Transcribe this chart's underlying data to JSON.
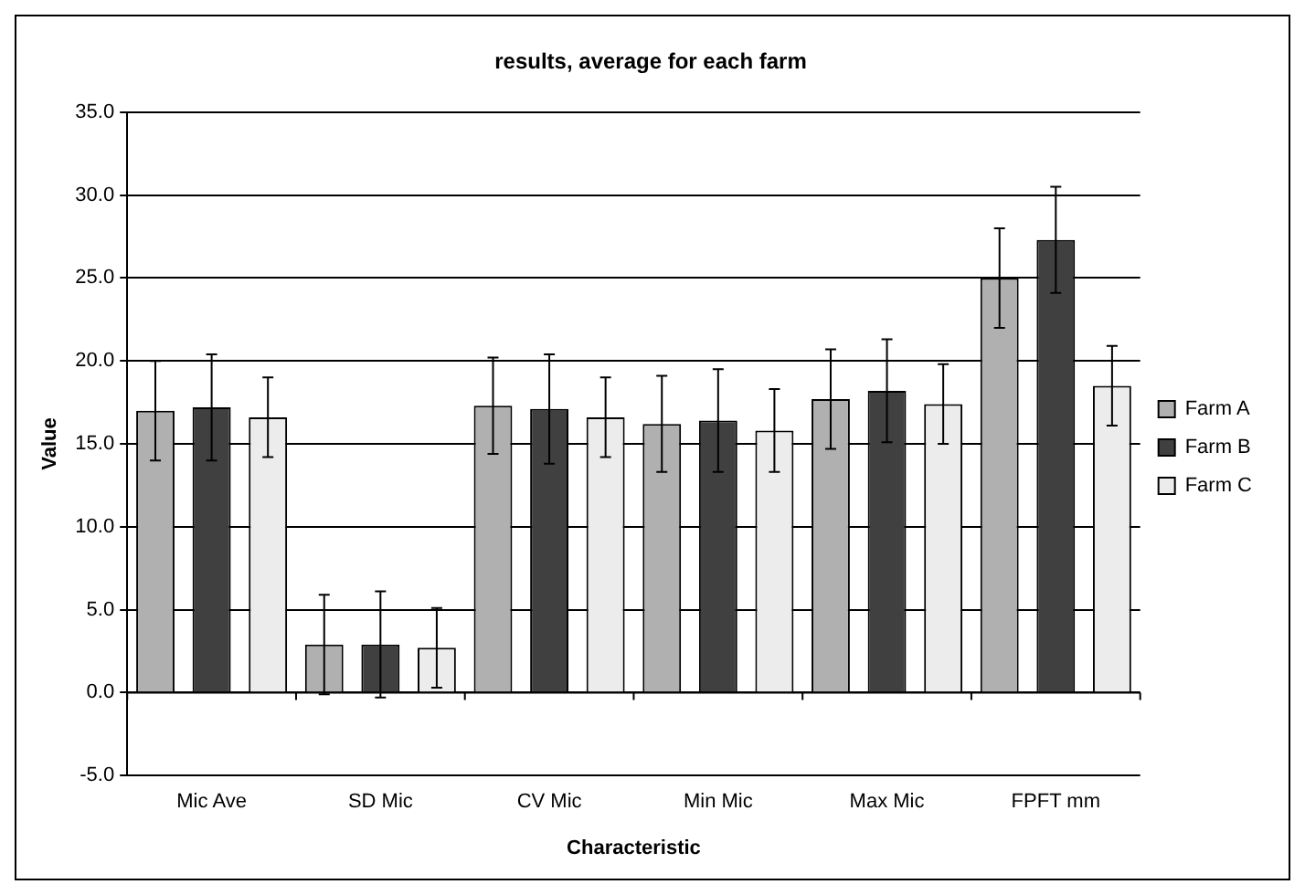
{
  "chart_data": {
    "type": "bar",
    "title": "results, average for each farm",
    "xlabel": "Characteristic",
    "ylabel": "Value",
    "categories": [
      "Mic Ave",
      "SD Mic",
      "CV Mic",
      "Min Mic",
      "Max Mic",
      "FPFT mm"
    ],
    "series": [
      {
        "name": "Farm A",
        "color": "#b0b0b0",
        "values": [
          17.0,
          2.9,
          17.3,
          16.2,
          17.7,
          25.0
        ],
        "errors": [
          3.0,
          3.0,
          2.9,
          2.9,
          3.0,
          3.0
        ]
      },
      {
        "name": "Farm B",
        "color": "#404040",
        "values": [
          17.2,
          2.9,
          17.1,
          16.4,
          18.2,
          27.3
        ],
        "errors": [
          3.2,
          3.2,
          3.3,
          3.1,
          3.1,
          3.2
        ]
      },
      {
        "name": "Farm C",
        "color": "#ececec",
        "values": [
          16.6,
          2.7,
          16.6,
          15.8,
          17.4,
          18.5
        ],
        "errors": [
          2.4,
          2.4,
          2.4,
          2.5,
          2.4,
          2.4
        ]
      }
    ],
    "ylim": [
      -5,
      35
    ],
    "yticks": [
      {
        "value": -5,
        "label": "-5.0"
      },
      {
        "value": 0,
        "label": "0.0"
      },
      {
        "value": 5,
        "label": "5.0"
      },
      {
        "value": 10,
        "label": "10.0"
      },
      {
        "value": 15,
        "label": "15.0"
      },
      {
        "value": 20,
        "label": "20.0"
      },
      {
        "value": 25,
        "label": "25.0"
      },
      {
        "value": 30,
        "label": "30.0"
      },
      {
        "value": 35,
        "label": "35.0"
      }
    ],
    "grid": "y",
    "legend": "right"
  }
}
